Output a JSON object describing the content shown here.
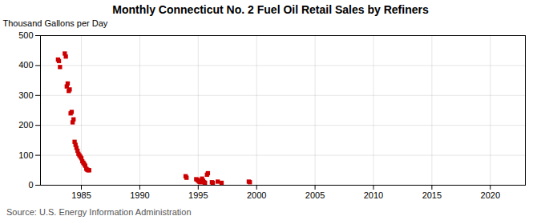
{
  "chart_data": {
    "type": "scatter",
    "title": "Monthly Connecticut No. 2 Fuel Oil Retail Sales by Refiners",
    "ylabel": "Thousand Gallons per Day",
    "annotations": [
      "Source: U.S. Energy Information Administration"
    ],
    "color": "#cc0000",
    "marker": "square",
    "grid": true,
    "xlim": [
      1981.5,
      2023
    ],
    "ylim": [
      0,
      500
    ],
    "xticks": [
      1985,
      1990,
      1995,
      2000,
      2005,
      2010,
      2015,
      2020
    ],
    "yticks": [
      0,
      100,
      200,
      300,
      400,
      500
    ],
    "x": [
      1983.0,
      1983.08,
      1983.17,
      1983.58,
      1983.67,
      1983.75,
      1983.83,
      1983.92,
      1984.0,
      1984.08,
      1984.17,
      1984.25,
      1984.33,
      1984.42,
      1984.5,
      1984.58,
      1984.67,
      1984.75,
      1984.83,
      1984.92,
      1985.0,
      1985.08,
      1985.17,
      1985.25,
      1985.33,
      1985.42,
      1985.5,
      1985.58,
      1985.67,
      1993.92,
      1994.0,
      1994.83,
      1994.92,
      1995.0,
      1995.08,
      1995.17,
      1995.33,
      1995.42,
      1995.5,
      1995.58,
      1995.75,
      1995.83,
      1996.17,
      1996.25,
      1996.67,
      1997.0,
      1999.33,
      1999.42
    ],
    "values": [
      420,
      415,
      395,
      440,
      430,
      330,
      340,
      315,
      320,
      240,
      245,
      210,
      220,
      145,
      135,
      125,
      115,
      105,
      100,
      95,
      90,
      80,
      75,
      70,
      65,
      55,
      52,
      50,
      50,
      30,
      25,
      20,
      18,
      15,
      12,
      10,
      22,
      15,
      10,
      8,
      35,
      40,
      10,
      8,
      12,
      8,
      12,
      10
    ]
  }
}
